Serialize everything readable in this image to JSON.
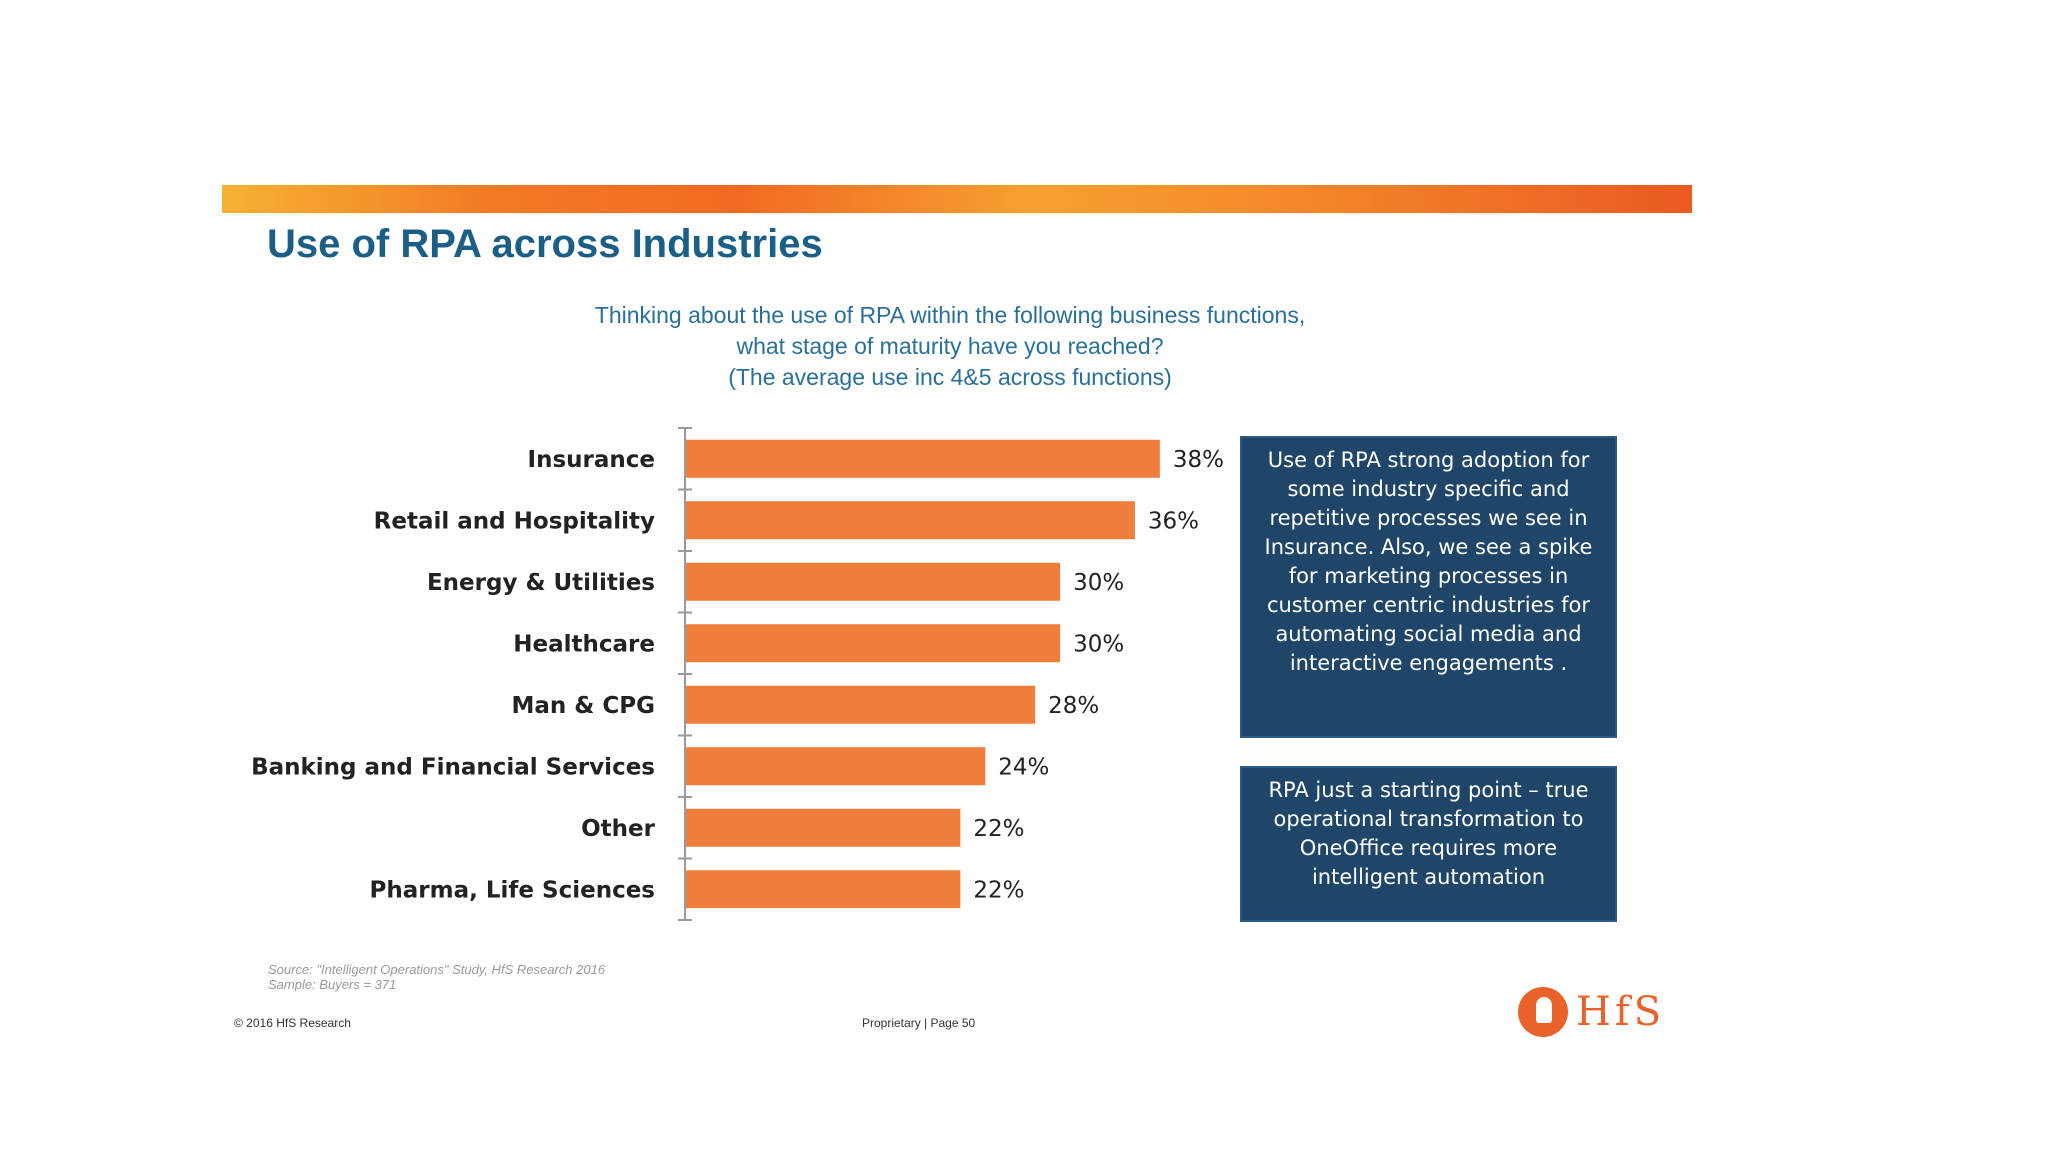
{
  "slide": {
    "title": "Use of RPA across Industries",
    "subtitle_lines": [
      "Thinking about the use of RPA within the following business functions,",
      "what stage of maturity have you reached?",
      "(The average use inc 4&5 across functions)"
    ]
  },
  "chart_data": {
    "type": "bar",
    "orientation": "horizontal",
    "categories": [
      "Insurance",
      "Retail and Hospitality",
      "Energy & Utilities",
      "Healthcare",
      "Man & CPG",
      "Banking and Financial Services",
      "Other",
      "Pharma, Life Sciences"
    ],
    "values": [
      38,
      36,
      30,
      30,
      28,
      24,
      22,
      22
    ],
    "value_labels": [
      "38%",
      "36%",
      "30%",
      "30%",
      "28%",
      "24%",
      "22%",
      "22%"
    ],
    "unit": "%",
    "xlim": [
      0,
      40
    ],
    "color": "#ef7d3c",
    "grid": false,
    "legend": "none"
  },
  "notes": {
    "note1": "Use of RPA strong adoption for some industry specific and repetitive processes we see in Insurance. Also, we see a spike for marketing processes in customer centric industries for automating social media and interactive engagements .",
    "note2": "RPA just a starting point – true operational transformation to OneOffice requires more intelligent automation"
  },
  "footer": {
    "source_line1": "Source: \"Intelligent Operations\" Study, HfS Research 2016",
    "source_line2": "Sample: Buyers = 371",
    "copyright": "© 2016 HfS Research",
    "page": "Proprietary | Page 50",
    "logo_text": "HfS"
  },
  "colors": {
    "title": "#1b5f86",
    "subtitle": "#2a6f9a",
    "bar": "#ef7d3c",
    "note_bg": "#1f4569",
    "logo": "#e8622a"
  }
}
